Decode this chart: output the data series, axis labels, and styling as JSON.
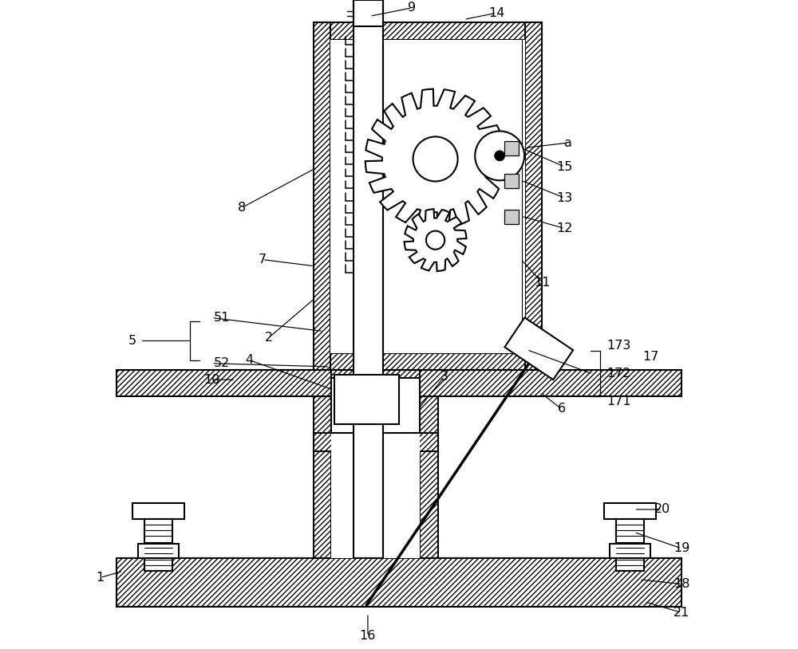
{
  "bg": "#ffffff",
  "lw": 1.5,
  "figsize": [
    10.0,
    8.14
  ],
  "dpi": 100
}
